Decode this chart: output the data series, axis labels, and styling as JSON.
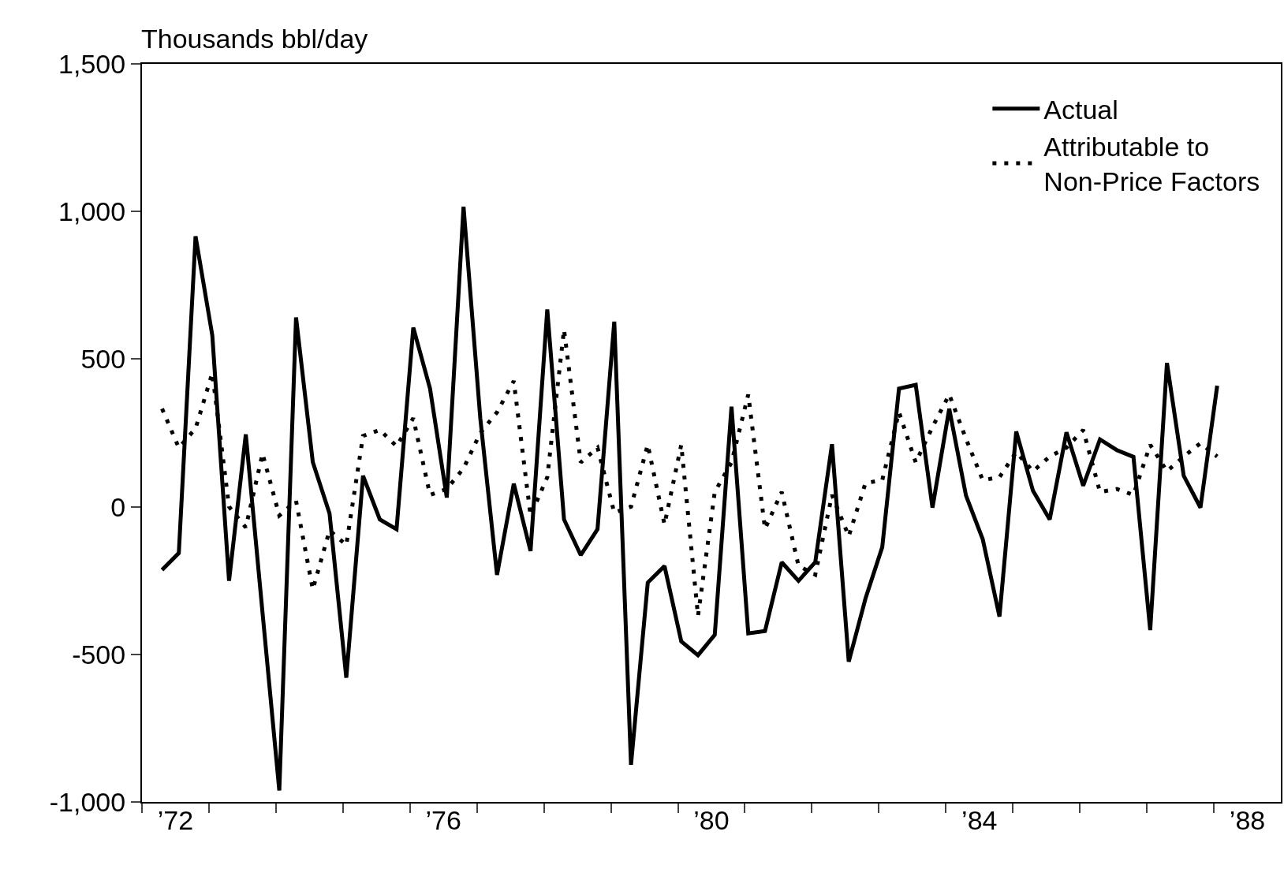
{
  "chart_data": {
    "type": "line",
    "ylabel": "Thousands bbl/day",
    "x": [
      1971.8,
      1972.05,
      1972.3,
      1972.55,
      1972.8,
      1973.05,
      1973.3,
      1973.55,
      1973.8,
      1974.05,
      1974.3,
      1974.55,
      1974.8,
      1975.05,
      1975.3,
      1975.55,
      1975.8,
      1976.05,
      1976.3,
      1976.55,
      1976.8,
      1977.05,
      1977.3,
      1977.55,
      1977.8,
      1978.05,
      1978.3,
      1978.55,
      1978.8,
      1979.05,
      1979.3,
      1979.55,
      1979.8,
      1980.05,
      1980.3,
      1980.55,
      1980.8,
      1981.05,
      1981.3,
      1981.55,
      1981.8,
      1982.05,
      1982.3,
      1982.55,
      1982.8,
      1983.05,
      1983.3,
      1983.55,
      1983.8,
      1984.05,
      1984.3,
      1984.55,
      1984.8,
      1985.05,
      1985.3,
      1985.55,
      1985.8,
      1986.05,
      1986.3,
      1986.55,
      1986.8,
      1987.05,
      1987.3,
      1987.55
    ],
    "series": [
      {
        "name": "Actual",
        "color": "#000000",
        "line_style": "solid",
        "values": [
          -214,
          -157,
          916,
          580,
          -251,
          245,
          -360,
          -961,
          641,
          151,
          -23,
          -579,
          105,
          -43,
          -76,
          607,
          400,
          31,
          1016,
          300,
          -231,
          78,
          -150,
          668,
          -43,
          -164,
          -76,
          627,
          -874,
          -257,
          -201,
          -456,
          -503,
          -434,
          339,
          -429,
          -421,
          -188,
          -251,
          -188,
          212,
          -525,
          -311,
          -137,
          400,
          413,
          -3,
          332,
          38,
          -110,
          -372,
          255,
          54,
          -43,
          252,
          71,
          228,
          192,
          169,
          -418,
          487,
          105,
          -3,
          410
        ]
      },
      {
        "name": "Attributable to Non-Price Factors",
        "color": "#000000",
        "line_style": "dotted",
        "values": [
          332,
          200,
          265,
          453,
          0,
          -70,
          180,
          -30,
          20,
          -280,
          -80,
          -130,
          240,
          260,
          205,
          300,
          40,
          60,
          130,
          250,
          320,
          426,
          -30,
          100,
          600,
          150,
          200,
          -20,
          0,
          210,
          -60,
          210,
          -370,
          50,
          150,
          380,
          -75,
          50,
          -200,
          -230,
          40,
          -100,
          80,
          90,
          320,
          150,
          270,
          380,
          230,
          90,
          100,
          185,
          120,
          170,
          200,
          260,
          50,
          60,
          40,
          210,
          120,
          170,
          215,
          170
        ]
      }
    ],
    "xlim": [
      1971.5,
      1988.5
    ],
    "xticks": [
      {
        "value": 1971.5,
        "label": null
      },
      {
        "value": 1972.5,
        "label": null
      },
      {
        "value": 1973.5,
        "label": null
      },
      {
        "value": 1974.5,
        "label": null
      },
      {
        "value": 1975.5,
        "label": null
      },
      {
        "value": 1976.5,
        "label": null
      },
      {
        "value": 1977.5,
        "label": null
      },
      {
        "value": 1978.5,
        "label": null
      },
      {
        "value": 1979.5,
        "label": null
      },
      {
        "value": 1980.5,
        "label": null
      },
      {
        "value": 1981.5,
        "label": null
      },
      {
        "value": 1982.5,
        "label": null
      },
      {
        "value": 1983.5,
        "label": null
      },
      {
        "value": 1984.5,
        "label": null
      },
      {
        "value": 1985.5,
        "label": null
      },
      {
        "value": 1986.5,
        "label": null
      },
      {
        "value": 1987.5,
        "label": null
      },
      {
        "value": 1972,
        "label": "’72"
      },
      {
        "value": 1976,
        "label": "’76"
      },
      {
        "value": 1980,
        "label": "’80"
      },
      {
        "value": 1984,
        "label": "’84"
      },
      {
        "value": 1988,
        "label": "’88"
      }
    ],
    "ylim": [
      -1000,
      1500
    ],
    "yticks": [
      {
        "value": -1000,
        "label": "-1,000"
      },
      {
        "value": -500,
        "label": "-500"
      },
      0,
      500,
      {
        "value": 1000,
        "label": "1,000"
      },
      {
        "value": 1500,
        "label": "1,500"
      }
    ],
    "grid": false,
    "legend": "top right"
  }
}
